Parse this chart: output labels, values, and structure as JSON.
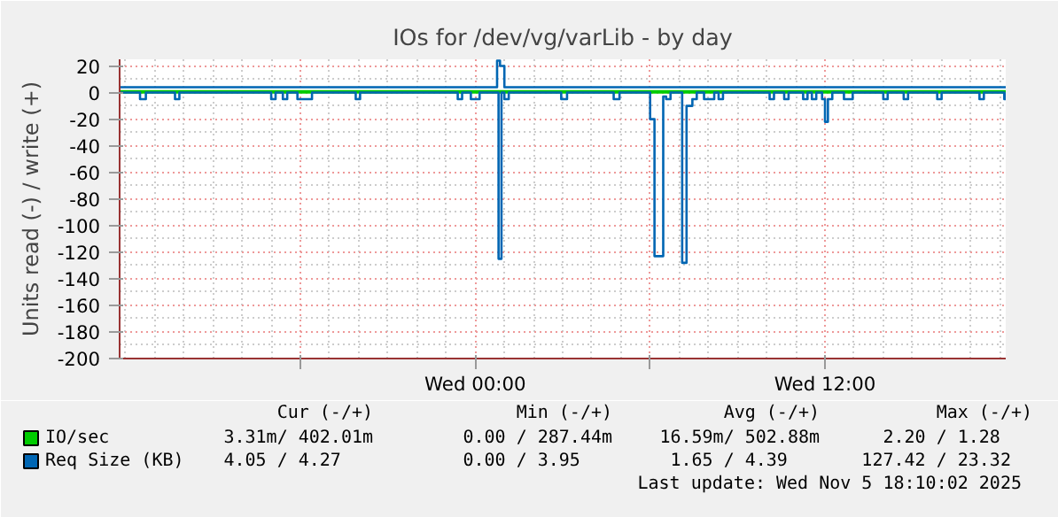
{
  "chart_data": {
    "type": "step",
    "title": "IOs for /dev/vg/varLib - by day",
    "ylabel": "Units read (-) / write (+)",
    "xlim": [
      "2025-11-04T11:48",
      "2025-11-05T18:12"
    ],
    "xticks": [
      {
        "value": "2025-11-04T18:00",
        "label": null
      },
      {
        "value": "2025-11-05T00:00",
        "label": "Wed 00:00"
      },
      {
        "value": "2025-11-05T06:00",
        "label": null
      },
      {
        "value": "2025-11-05T12:00",
        "label": "Wed 12:00"
      }
    ],
    "ylim": [
      -200,
      25
    ],
    "yticks": [
      -200,
      -180,
      -160,
      -140,
      -120,
      -100,
      -80,
      -60,
      -40,
      -20,
      0,
      20
    ],
    "grid": true,
    "legend": "bottom left",
    "series": [
      {
        "color": "#00cc00",
        "x": [
          "2025-11-04T11:48",
          "2025-11-05T18:12"
        ],
        "values": [
          0,
          0
        ]
      },
      {
        "name": "IO/sec",
        "color": "#00cc00",
        "x": [
          "2025-11-04T11:48",
          "2025-11-05T18:12"
        ],
        "values": [
          1,
          1
        ]
      },
      {
        "color": "#0066b3",
        "x": [
          "2025-11-04T11:48",
          "2025-11-04T12:30",
          "2025-11-04T12:42",
          "2025-11-04T13:42",
          "2025-11-04T13:51",
          "2025-11-04T17:00",
          "2025-11-04T17:09",
          "2025-11-04T17:24",
          "2025-11-04T17:33",
          "2025-11-04T17:54",
          "2025-11-04T18:24",
          "2025-11-04T19:54",
          "2025-11-04T20:03",
          "2025-11-04T23:24",
          "2025-11-04T23:33",
          "2025-11-04T23:51",
          "2025-11-05T00:09",
          "2025-11-05T00:48",
          "2025-11-05T00:54",
          "2025-11-05T01:00",
          "2025-11-05T01:09",
          "2025-11-05T02:57",
          "2025-11-05T03:09",
          "2025-11-05T04:45",
          "2025-11-05T04:57",
          "2025-11-05T06:00",
          "2025-11-05T06:09",
          "2025-11-05T06:27",
          "2025-11-05T06:33",
          "2025-11-05T06:42",
          "2025-11-05T07:06",
          "2025-11-05T07:15",
          "2025-11-05T07:27",
          "2025-11-05T07:36",
          "2025-11-05T07:51",
          "2025-11-05T08:12",
          "2025-11-05T08:21",
          "2025-11-05T08:30",
          "2025-11-05T10:06",
          "2025-11-05T10:15",
          "2025-11-05T10:36",
          "2025-11-05T10:45",
          "2025-11-05T11:15",
          "2025-11-05T11:24",
          "2025-11-05T11:33",
          "2025-11-05T11:42",
          "2025-11-05T11:54",
          "2025-11-05T12:00",
          "2025-11-05T12:06",
          "2025-11-05T12:15",
          "2025-11-05T12:39",
          "2025-11-05T12:57",
          "2025-11-05T14:00",
          "2025-11-05T14:09",
          "2025-11-05T14:42",
          "2025-11-05T14:51",
          "2025-11-05T15:51",
          "2025-11-05T16:00",
          "2025-11-05T17:18",
          "2025-11-05T17:27",
          "2025-11-05T18:09",
          "2025-11-05T18:12"
        ],
        "values": [
          0,
          -5,
          0,
          -5,
          0,
          -5,
          0,
          -5,
          0,
          -5,
          0,
          -5,
          0,
          -5,
          0,
          -5,
          0,
          -125,
          0,
          -5,
          0,
          -5,
          0,
          -5,
          0,
          -20,
          -123,
          -3,
          -5,
          0,
          -128,
          -10,
          -5,
          0,
          -5,
          0,
          -5,
          0,
          -5,
          0,
          -5,
          0,
          -5,
          0,
          -5,
          0,
          -5,
          -22,
          -5,
          0,
          -5,
          0,
          -5,
          0,
          -5,
          0,
          -5,
          0,
          -5,
          0,
          -5,
          0
        ]
      },
      {
        "name": "Req Size (KB)",
        "color": "#0066b3",
        "x": [
          "2025-11-04T11:48",
          "2025-11-05T00:45",
          "2025-11-05T00:51",
          "2025-11-05T01:00",
          "2025-11-05T18:12"
        ],
        "values": [
          4,
          24,
          20,
          4,
          4
        ]
      }
    ],
    "annotations": [
      "Cur (-/+)",
      "Min (-/+)",
      "Avg (-/+)",
      "Max (-/+)",
      "3.31m/ 402.01m",
      "0.00 / 287.44m",
      "16.59m/ 502.88m",
      "2.20 /    1.28",
      "4.05 /    4.27",
      "0.00 /    3.95",
      "1.65 /    4.39",
      "127.42 /   23.32",
      "Last update: Wed Nov  5 18:10:02 2025"
    ]
  }
}
